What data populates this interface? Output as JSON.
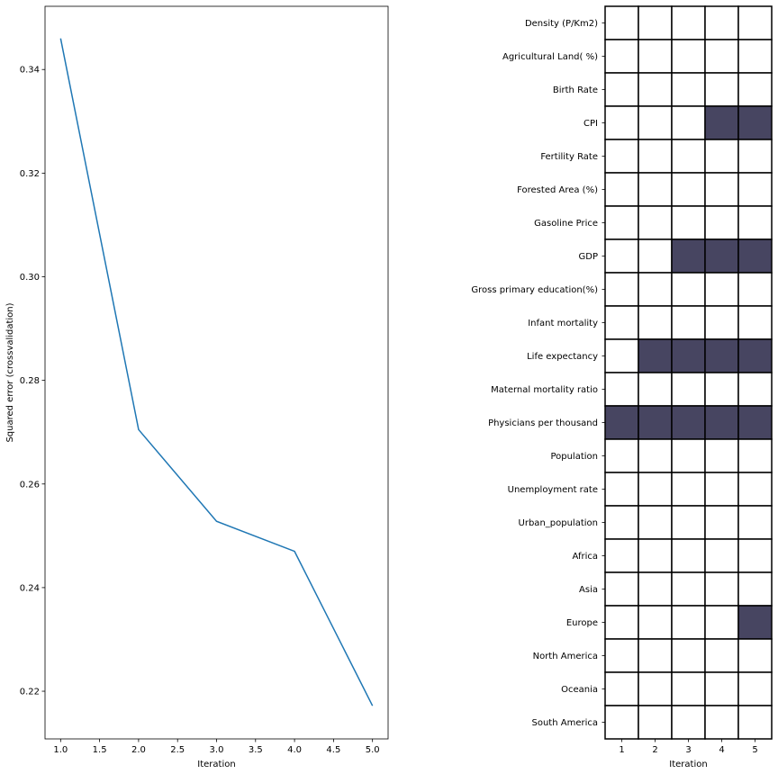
{
  "chart_data": [
    {
      "type": "line",
      "title": "",
      "xlabel": "Iteration",
      "ylabel": "Squared error (crossvalidation)",
      "x": [
        1.0,
        2.0,
        3.0,
        4.0,
        5.0
      ],
      "series": [
        {
          "values": [
            0.346,
            0.2705,
            0.2528,
            0.247,
            0.2172
          ]
        }
      ],
      "xlim": [
        0.8,
        5.2
      ],
      "ylim": [
        0.2108,
        0.3522
      ],
      "xticks": [
        "1.0",
        "1.5",
        "2.0",
        "2.5",
        "3.0",
        "3.5",
        "4.0",
        "4.5",
        "5.0"
      ],
      "yticks": [
        "0.22",
        "0.24",
        "0.26",
        "0.28",
        "0.30",
        "0.32",
        "0.34"
      ],
      "grid": false,
      "line_color": "#1f77b4"
    },
    {
      "type": "heatmap",
      "title": "",
      "xlabel": "Iteration",
      "ylabel": "",
      "columns": [
        "1",
        "2",
        "3",
        "4",
        "5"
      ],
      "rows": [
        "Density (P/Km2)",
        "Agricultural Land( %)",
        "Birth Rate",
        "CPI",
        "Fertility Rate",
        "Forested Area (%)",
        "Gasoline Price",
        "GDP",
        "Gross primary education(%)",
        "Infant mortality",
        "Life expectancy",
        "Maternal mortality ratio",
        "Physicians per thousand",
        "Population",
        "Unemployment rate",
        "Urban_population",
        "Africa",
        "Asia",
        "Europe",
        "North America",
        "Oceania",
        "South America"
      ],
      "values": [
        [
          0,
          0,
          0,
          0,
          0
        ],
        [
          0,
          0,
          0,
          0,
          0
        ],
        [
          0,
          0,
          0,
          0,
          0
        ],
        [
          0,
          0,
          0,
          1,
          1
        ],
        [
          0,
          0,
          0,
          0,
          0
        ],
        [
          0,
          0,
          0,
          0,
          0
        ],
        [
          0,
          0,
          0,
          0,
          0
        ],
        [
          0,
          0,
          1,
          1,
          1
        ],
        [
          0,
          0,
          0,
          0,
          0
        ],
        [
          0,
          0,
          0,
          0,
          0
        ],
        [
          0,
          1,
          1,
          1,
          1
        ],
        [
          0,
          0,
          0,
          0,
          0
        ],
        [
          1,
          1,
          1,
          1,
          1
        ],
        [
          0,
          0,
          0,
          0,
          0
        ],
        [
          0,
          0,
          0,
          0,
          0
        ],
        [
          0,
          0,
          0,
          0,
          0
        ],
        [
          0,
          0,
          0,
          0,
          0
        ],
        [
          0,
          0,
          0,
          0,
          0
        ],
        [
          0,
          0,
          0,
          0,
          1
        ],
        [
          0,
          0,
          0,
          0,
          0
        ],
        [
          0,
          0,
          0,
          0,
          0
        ],
        [
          0,
          0,
          0,
          0,
          0
        ]
      ],
      "grid": true,
      "on_color": "#474561",
      "off_color": "#ffffff"
    }
  ]
}
